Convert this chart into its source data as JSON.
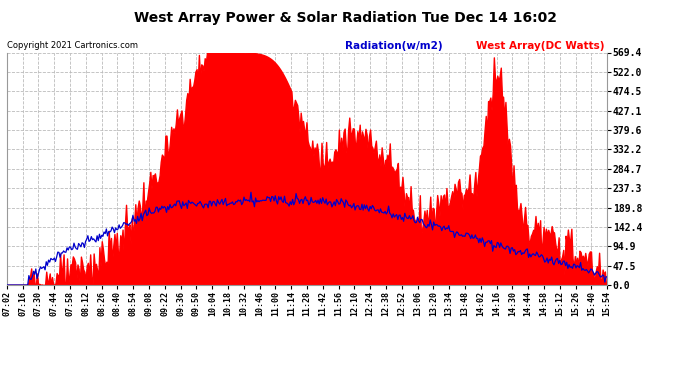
{
  "title": "West Array Power & Solar Radiation Tue Dec 14 16:02",
  "copyright": "Copyright 2021 Cartronics.com",
  "legend_radiation": "Radiation(w/m2)",
  "legend_west": "West Array(DC Watts)",
  "ylabel_right_ticks": [
    0.0,
    47.5,
    94.9,
    142.4,
    189.8,
    237.3,
    284.7,
    332.2,
    379.6,
    427.1,
    474.5,
    522.0,
    569.4
  ],
  "ymin": 0.0,
  "ymax": 569.4,
  "background_color": "#ffffff",
  "grid_color": "#bbbbbb",
  "fill_color": "#ff0000",
  "line_color": "#0000cc",
  "title_color": "#000000",
  "copyright_color": "#000000",
  "radiation_color": "#0000cc",
  "west_color": "#ff0000",
  "figsize": [
    6.9,
    3.75
  ],
  "dpi": 100,
  "x_ticks_labels": [
    "07:02",
    "07:16",
    "07:30",
    "07:44",
    "07:58",
    "08:12",
    "08:26",
    "08:40",
    "08:54",
    "09:08",
    "09:22",
    "09:36",
    "09:50",
    "10:04",
    "10:18",
    "10:32",
    "10:46",
    "11:00",
    "11:14",
    "11:28",
    "11:42",
    "11:56",
    "12:10",
    "12:24",
    "12:38",
    "12:52",
    "13:06",
    "13:20",
    "13:34",
    "13:48",
    "14:02",
    "14:16",
    "14:30",
    "14:44",
    "14:58",
    "15:12",
    "15:26",
    "15:40",
    "15:54"
  ]
}
